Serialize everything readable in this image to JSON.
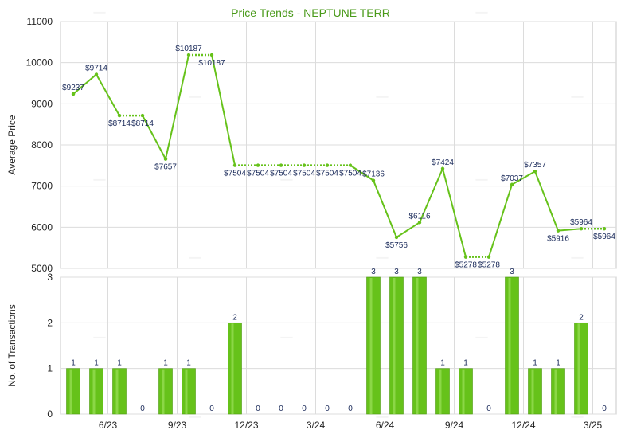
{
  "chart_data": [
    {
      "type": "line",
      "title": "Price Trends - NEPTUNE TERR",
      "ylabel": "Average Price",
      "ylim": [
        5000,
        11000
      ],
      "yticks": [
        5000,
        6000,
        7000,
        8000,
        9000,
        10000,
        11000
      ],
      "grid": true,
      "line_color": "#66c21a",
      "points": [
        {
          "i": 0,
          "value": 9237,
          "label": "$9237",
          "solid": true
        },
        {
          "i": 1,
          "value": 9714,
          "label": "$9714",
          "solid": true
        },
        {
          "i": 2,
          "value": 8714,
          "label": "$8714",
          "solid": true
        },
        {
          "i": 3,
          "value": 8714,
          "label": "$8714",
          "solid": false
        },
        {
          "i": 4,
          "value": 7657,
          "label": "$7657",
          "solid": true
        },
        {
          "i": 5,
          "value": 10187,
          "label": "$10187",
          "solid": true
        },
        {
          "i": 6,
          "value": 10187,
          "label": "$10187",
          "solid": false
        },
        {
          "i": 7,
          "value": 7504,
          "label": "$7504",
          "solid": true
        },
        {
          "i": 8,
          "value": 7504,
          "label": "$7504",
          "solid": false
        },
        {
          "i": 9,
          "value": 7504,
          "label": "$7504",
          "solid": false
        },
        {
          "i": 10,
          "value": 7504,
          "label": "$7504",
          "solid": false
        },
        {
          "i": 11,
          "value": 7504,
          "label": "$7504",
          "solid": false
        },
        {
          "i": 12,
          "value": 7504,
          "label": "$7504",
          "solid": false
        },
        {
          "i": 13,
          "value": 7136,
          "label": "$7136",
          "solid": true
        },
        {
          "i": 14,
          "value": 5756,
          "label": "$5756",
          "solid": true
        },
        {
          "i": 15,
          "value": 6116,
          "label": "$6116",
          "solid": true
        },
        {
          "i": 16,
          "value": 7424,
          "label": "$7424",
          "solid": true
        },
        {
          "i": 17,
          "value": 5278,
          "label": "$5278",
          "solid": true
        },
        {
          "i": 18,
          "value": 5278,
          "label": "$5278",
          "solid": false
        },
        {
          "i": 19,
          "value": 7037,
          "label": "$7037",
          "solid": true
        },
        {
          "i": 20,
          "value": 7357,
          "label": "$7357",
          "solid": true
        },
        {
          "i": 21,
          "value": 5916,
          "label": "$5916",
          "solid": true
        },
        {
          "i": 22,
          "value": 5964,
          "label": "$5964",
          "solid": true
        },
        {
          "i": 23,
          "value": 5964,
          "label": "$5964",
          "solid": false
        }
      ]
    },
    {
      "type": "bar",
      "ylabel": "No. of Transactions",
      "ylim": [
        0,
        3
      ],
      "yticks": [
        0,
        1,
        2,
        3
      ],
      "grid": true,
      "bar_color": "#66c21a",
      "values": [
        1,
        1,
        1,
        0,
        1,
        1,
        0,
        2,
        0,
        0,
        0,
        0,
        0,
        3,
        3,
        3,
        1,
        1,
        0,
        3,
        1,
        1,
        2,
        0
      ]
    }
  ],
  "x_axis": {
    "ticks": [
      {
        "after": 1,
        "label": "6/23"
      },
      {
        "after": 4,
        "label": "9/23"
      },
      {
        "after": 7,
        "label": "12/23"
      },
      {
        "after": 10,
        "label": "3/24"
      },
      {
        "after": 13,
        "label": "6/24"
      },
      {
        "after": 16,
        "label": "9/24"
      },
      {
        "after": 19,
        "label": "12/24"
      },
      {
        "after": 22,
        "label": "3/25"
      }
    ]
  },
  "watermark": "一"
}
